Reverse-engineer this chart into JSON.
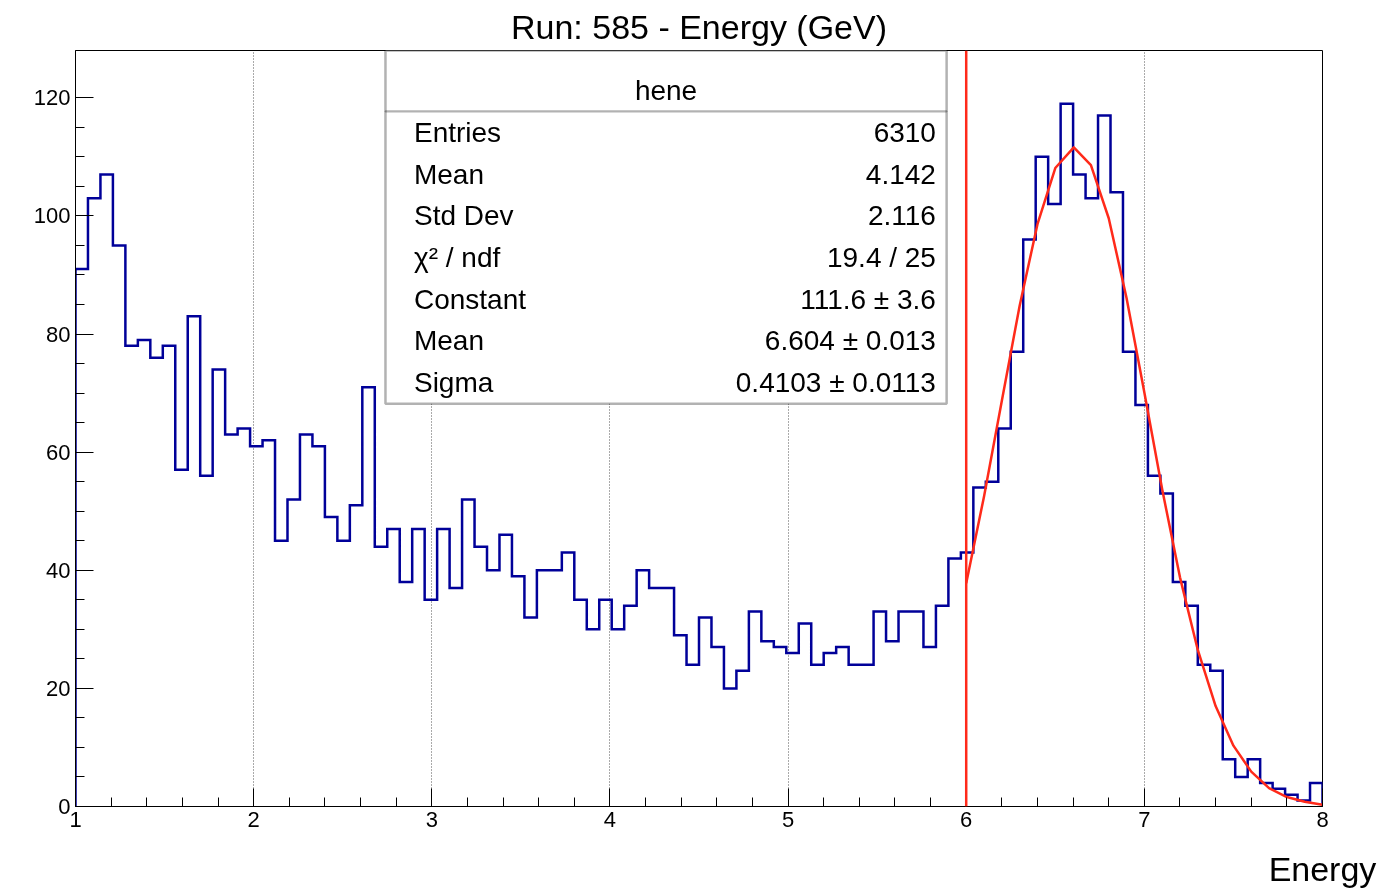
{
  "chart_data": {
    "type": "histogram",
    "title": "Run: 585 - Energy (GeV)",
    "xlabel": "Energy",
    "bins": [
      1,
      1.07,
      1.14,
      1.21,
      1.28,
      1.35,
      1.42,
      1.49,
      1.56,
      1.63,
      1.7,
      1.77,
      1.84,
      1.91,
      1.98,
      2.05,
      2.12,
      2.19,
      2.26,
      2.33,
      2.4,
      2.47,
      2.54,
      2.61,
      2.68,
      2.75,
      2.82,
      2.89,
      2.96,
      3.03,
      3.1,
      3.17,
      3.24,
      3.31,
      3.38,
      3.45,
      3.52,
      3.59,
      3.66,
      3.73,
      3.8,
      3.87,
      3.94,
      4.01,
      4.08,
      4.15,
      4.22,
      4.29,
      4.36,
      4.43,
      4.5,
      4.57,
      4.64,
      4.71,
      4.78,
      4.85,
      4.92,
      4.99,
      5.06,
      5.13,
      5.2,
      5.27,
      5.34,
      5.41,
      5.48,
      5.55,
      5.62,
      5.69,
      5.76,
      5.83,
      5.9,
      5.97,
      6.04,
      6.11,
      6.18,
      6.25,
      6.32,
      6.39,
      6.46,
      6.53,
      6.6,
      6.67,
      6.74,
      6.81,
      6.88,
      6.95,
      7.02,
      7.09,
      7.16,
      7.23,
      7.3,
      7.37,
      7.44,
      7.51,
      7.58,
      7.65,
      7.72,
      7.79,
      7.86,
      7.93,
      8
    ],
    "values": [
      91,
      103,
      107,
      95,
      78,
      79,
      76,
      78,
      57,
      83,
      56,
      74,
      63,
      64,
      61,
      62,
      45,
      52,
      63,
      61,
      49,
      45,
      51,
      71,
      44,
      47,
      38,
      47,
      35,
      47,
      37,
      52,
      44,
      40,
      46,
      39,
      32,
      40,
      40,
      43,
      35,
      30,
      35,
      30,
      34,
      40,
      37,
      37,
      29,
      24,
      32,
      27,
      20,
      23,
      33,
      28,
      27,
      26,
      31,
      24,
      26,
      27,
      24,
      24,
      33,
      28,
      33,
      33,
      27,
      34,
      42,
      43,
      54,
      55,
      64,
      77,
      96,
      110,
      102,
      119,
      107,
      103,
      117,
      104,
      77,
      68,
      56,
      53,
      38,
      34,
      24,
      23,
      8,
      5,
      8,
      4,
      3,
      2,
      1,
      4
    ],
    "color": "#000099",
    "series": [
      {
        "type": "line",
        "color": "#ff2a1a",
        "x": [
          6.0,
          6.1,
          6.2,
          6.3,
          6.4,
          6.5,
          6.604,
          6.7,
          6.8,
          6.9,
          7.0,
          7.1,
          7.2,
          7.3,
          7.4,
          7.5,
          7.6,
          7.7,
          7.8,
          7.9,
          8.0
        ],
        "values": [
          37.8,
          52.5,
          68.7,
          84.8,
          98.6,
          108.1,
          111.6,
          108.6,
          99.6,
          86.1,
          70.1,
          53.7,
          38.8,
          26.5,
          17.0,
          10.3,
          5.9,
          3.1,
          1.6,
          0.8,
          0.3
        ]
      }
    ],
    "ref_lines": [
      {
        "axis": "x",
        "value": 6,
        "color": "#ff2a1a"
      }
    ],
    "xlim": [
      1,
      8
    ],
    "ylim": [
      0,
      128
    ],
    "xticks": [
      1,
      2,
      3,
      4,
      5,
      6,
      7,
      8
    ],
    "yticks": [
      0,
      20,
      40,
      60,
      80,
      100,
      120
    ],
    "grid": "x",
    "annotations": [
      "hene",
      "Entries\t6310",
      "Mean\t4.142",
      "Std Dev\t2.116",
      "χ² / ndf\t19.4 / 25",
      "Constant\t111.6 ± 3.6",
      "Mean\t6.604 ± 0.013",
      "Sigma\t0.4103 ± 0.0113"
    ]
  }
}
